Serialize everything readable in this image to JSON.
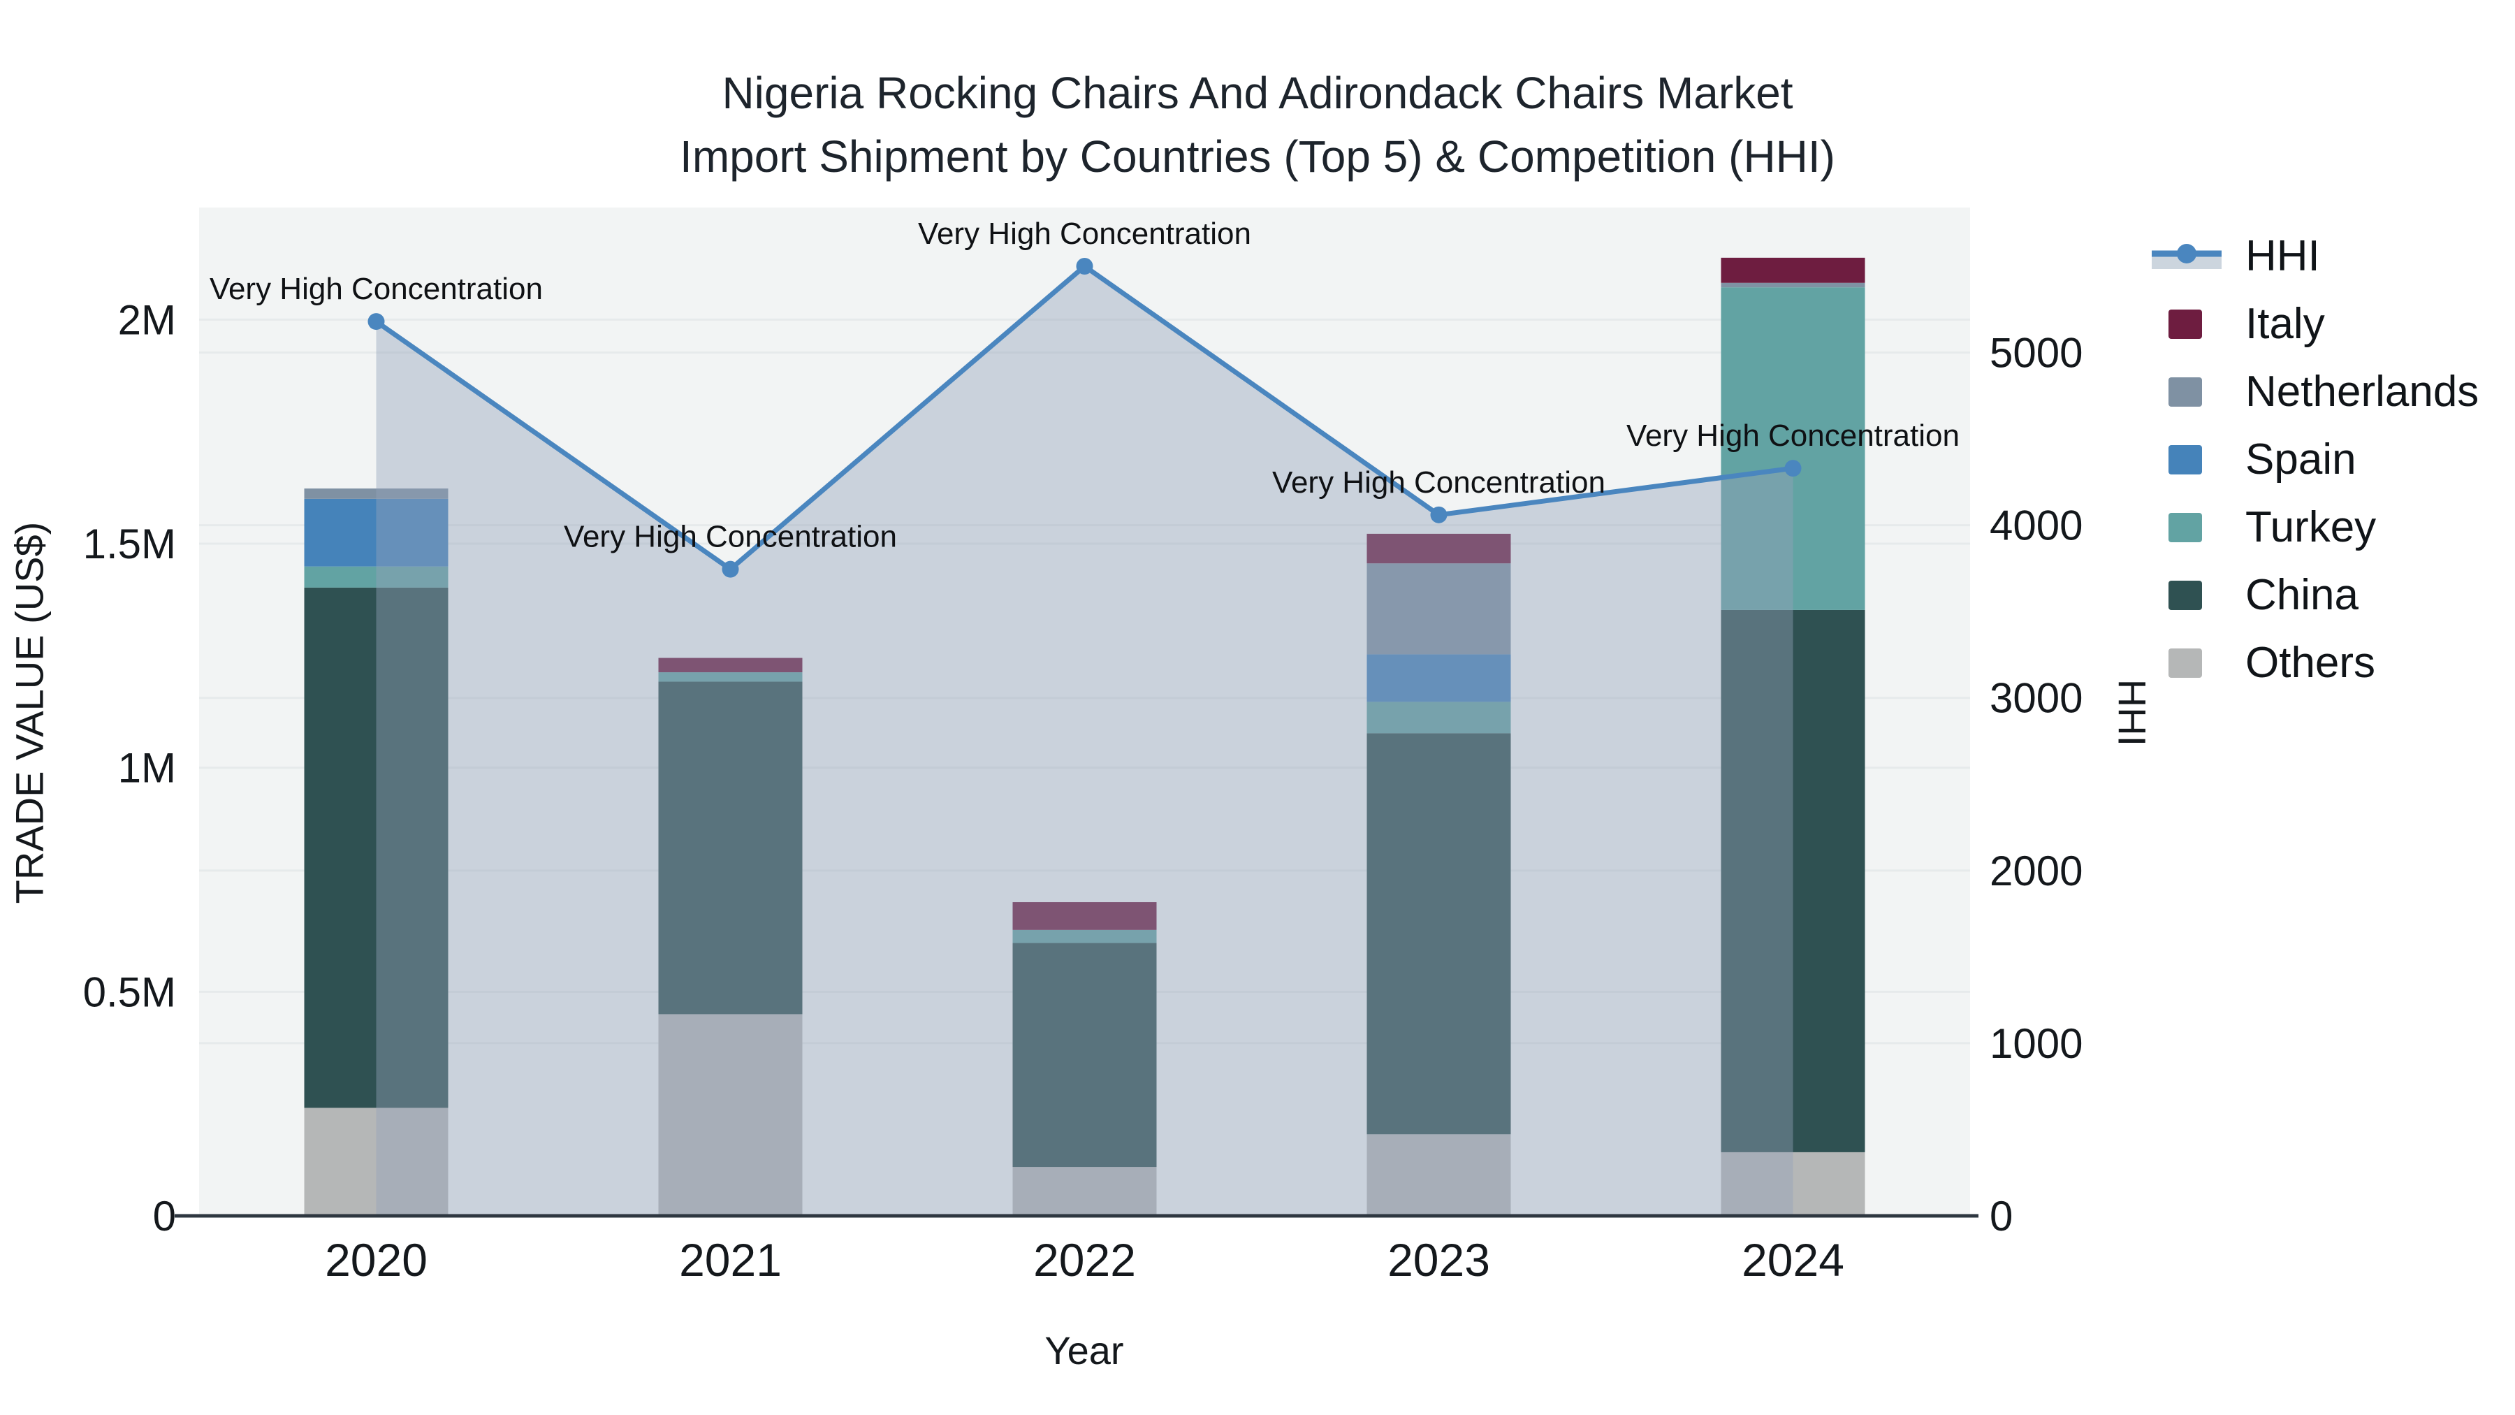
{
  "title": {
    "line1": "Nigeria Rocking Chairs And Adirondack Chairs Market",
    "line2": "Import Shipment by Countries (Top 5) & Competition (HHI)"
  },
  "axes": {
    "x": {
      "title": "Year"
    },
    "y_left": {
      "title": "TRADE VALUE (US$)",
      "ticks": [
        {
          "value": 0,
          "label": "0"
        },
        {
          "value": 500000,
          "label": "0.5M"
        },
        {
          "value": 1000000,
          "label": "1M"
        },
        {
          "value": 1500000,
          "label": "1.5M"
        },
        {
          "value": 2000000,
          "label": "2M"
        }
      ]
    },
    "y_right": {
      "title": "HHI",
      "ticks": [
        {
          "value": 0,
          "label": "0"
        },
        {
          "value": 1000,
          "label": "1000"
        },
        {
          "value": 2000,
          "label": "2000"
        },
        {
          "value": 3000,
          "label": "3000"
        },
        {
          "value": 4000,
          "label": "4000"
        },
        {
          "value": 5000,
          "label": "5000"
        }
      ]
    }
  },
  "legend": [
    {
      "name": "HHI",
      "type": "line",
      "color": "#4a86bf",
      "band_color": "#ccd5de"
    },
    {
      "name": "Italy",
      "type": "bar",
      "color": "#6e1d40"
    },
    {
      "name": "Netherlands",
      "type": "bar",
      "color": "#7f91a3"
    },
    {
      "name": "Spain",
      "type": "bar",
      "color": "#4583ba"
    },
    {
      "name": "Turkey",
      "type": "bar",
      "color": "#62a3a3"
    },
    {
      "name": "China",
      "type": "bar",
      "color": "#2f5152"
    },
    {
      "name": "Others",
      "type": "bar",
      "color": "#b5b7b7"
    }
  ],
  "chart_data": {
    "type": "bar+line",
    "title": "Nigeria Rocking Chairs And Adirondack Chairs Market Import Shipment by Countries (Top 5) & Competition (HHI)",
    "xlabel": "Year",
    "ylabel_left": "TRADE VALUE (US$)",
    "ylabel_right": "HHI",
    "categories": [
      "2020",
      "2021",
      "2022",
      "2023",
      "2024"
    ],
    "stack_order_note": "series listed bottom-to-top of stack",
    "series": [
      {
        "name": "Others",
        "color": "#b5b7b7",
        "values": [
          241000,
          450000,
          109000,
          182000,
          142000
        ]
      },
      {
        "name": "China",
        "color": "#2f5152",
        "values": [
          1161000,
          742000,
          500000,
          895000,
          1210000
        ]
      },
      {
        "name": "Turkey",
        "color": "#62a3a3",
        "values": [
          47000,
          21000,
          29000,
          70000,
          720000
        ]
      },
      {
        "name": "Spain",
        "color": "#4583ba",
        "values": [
          151000,
          0,
          0,
          106000,
          0
        ]
      },
      {
        "name": "Netherlands",
        "color": "#7f91a3",
        "values": [
          23000,
          0,
          0,
          203000,
          10000
        ]
      },
      {
        "name": "Italy",
        "color": "#6e1d40",
        "values": [
          0,
          32000,
          62000,
          66000,
          56000
        ]
      }
    ],
    "line_series": {
      "name": "HHI",
      "color": "#4a86bf",
      "area_fill": "rgba(148,163,186,0.42)",
      "values": [
        5180,
        3745,
        5500,
        4060,
        4330
      ]
    },
    "annotations": [
      "Very High Concentration",
      "Very High Concentration",
      "Very High Concentration",
      "Very High Concentration",
      "Very High Concentration"
    ],
    "ylim_left": [
      0,
      2250000
    ],
    "ylim_right": [
      0,
      5840
    ],
    "grid": true,
    "legend_position": "right",
    "plot_bg": "#f2f4f4",
    "grid_color": "#e6eaeb",
    "axis_line_color": "#2e3740"
  }
}
